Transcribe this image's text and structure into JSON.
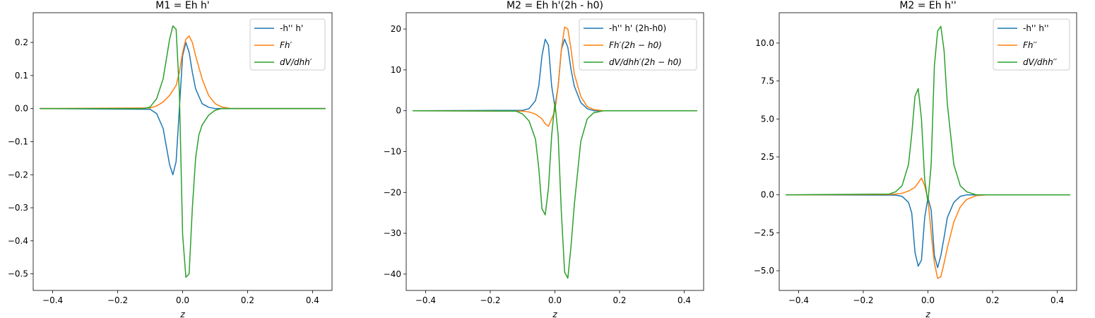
{
  "colors": {
    "blue": "#1f77b4",
    "orange": "#ff7f0e",
    "green": "#2ca02c"
  },
  "chart_data": [
    {
      "type": "line",
      "title": "M1 = Eh h'",
      "xlabel": "z",
      "ylabel": "",
      "xlim": [
        -0.46,
        0.46
      ],
      "ylim": [
        -0.55,
        0.29
      ],
      "xticks": [
        -0.4,
        -0.2,
        0.0,
        0.2,
        0.4
      ],
      "xtick_labels": [
        "−0.4",
        "−0.2",
        "0.0",
        "0.2",
        "0.4"
      ],
      "yticks": [
        0.2,
        0.1,
        0.0,
        -0.1,
        -0.2,
        -0.3,
        -0.4,
        -0.5
      ],
      "ytick_labels": [
        "0.2",
        "0.1",
        "0.0",
        "−0.1",
        "−0.2",
        "−0.3",
        "−0.4",
        "−0.5"
      ],
      "legend_position": "top-right",
      "series": [
        {
          "name": "-h'' h'",
          "color": "#1f77b4",
          "x": [
            -0.44,
            -0.1,
            -0.08,
            -0.06,
            -0.04,
            -0.03,
            -0.02,
            -0.01,
            0.0,
            0.01,
            0.02,
            0.03,
            0.04,
            0.06,
            0.08,
            0.1,
            0.44
          ],
          "y": [
            0.0,
            -0.002,
            -0.015,
            -0.06,
            -0.17,
            -0.2,
            -0.16,
            0.0,
            0.16,
            0.2,
            0.17,
            0.11,
            0.06,
            0.015,
            0.004,
            0.0,
            0.0
          ]
        },
        {
          "name": "Fh′",
          "color": "#ff7f0e",
          "x": [
            -0.44,
            -0.1,
            -0.08,
            -0.06,
            -0.04,
            -0.02,
            -0.01,
            0.0,
            0.01,
            0.02,
            0.03,
            0.04,
            0.06,
            0.08,
            0.1,
            0.12,
            0.15,
            0.44
          ],
          "y": [
            0.0,
            0.002,
            0.008,
            0.02,
            0.04,
            0.07,
            0.11,
            0.17,
            0.21,
            0.22,
            0.2,
            0.16,
            0.09,
            0.04,
            0.015,
            0.005,
            0.0,
            0.0
          ]
        },
        {
          "name": "dV/dhh′",
          "color": "#2ca02c",
          "x": [
            -0.44,
            -0.12,
            -0.1,
            -0.08,
            -0.06,
            -0.05,
            -0.04,
            -0.03,
            -0.02,
            -0.01,
            0.0,
            0.01,
            0.02,
            0.03,
            0.04,
            0.05,
            0.06,
            0.08,
            0.1,
            0.12,
            0.15,
            0.44
          ],
          "y": [
            0.0,
            0.0,
            0.005,
            0.03,
            0.09,
            0.15,
            0.21,
            0.25,
            0.24,
            0.05,
            -0.38,
            -0.51,
            -0.5,
            -0.3,
            -0.15,
            -0.08,
            -0.05,
            -0.02,
            -0.005,
            0.0,
            0.0,
            0.0
          ]
        }
      ]
    },
    {
      "type": "line",
      "title": "M2 = Eh h'(2h - h0)",
      "xlabel": "z",
      "ylabel": "",
      "xlim": [
        -0.46,
        0.46
      ],
      "ylim": [
        -44,
        24
      ],
      "xticks": [
        -0.4,
        -0.2,
        0.0,
        0.2,
        0.4
      ],
      "xtick_labels": [
        "−0.4",
        "−0.2",
        "0.0",
        "0.2",
        "0.4"
      ],
      "yticks": [
        20,
        10,
        0,
        -10,
        -20,
        -30,
        -40
      ],
      "ytick_labels": [
        "20",
        "10",
        "0",
        "−10",
        "−20",
        "−30",
        "−40"
      ],
      "legend_position": "top-right",
      "series": [
        {
          "name": "-h'' h' (2h-h0)",
          "color": "#1f77b4",
          "x": [
            -0.44,
            -0.1,
            -0.08,
            -0.06,
            -0.05,
            -0.04,
            -0.03,
            -0.02,
            -0.01,
            0.0,
            0.01,
            0.02,
            0.03,
            0.04,
            0.05,
            0.06,
            0.08,
            0.1,
            0.12,
            0.44
          ],
          "y": [
            0.0,
            0.1,
            0.5,
            2.5,
            6.0,
            13.5,
            17.5,
            16.0,
            6.0,
            1.0,
            6.0,
            15.0,
            17.5,
            15.5,
            10.0,
            6.0,
            2.0,
            0.5,
            0.0,
            0.0
          ]
        },
        {
          "name": "Fh′(2h − h0)",
          "color": "#ff7f0e",
          "x": [
            -0.44,
            -0.1,
            -0.08,
            -0.06,
            -0.04,
            -0.03,
            -0.02,
            -0.01,
            0.0,
            0.01,
            0.02,
            0.03,
            0.04,
            0.05,
            0.06,
            0.08,
            0.1,
            0.12,
            0.15,
            0.44
          ],
          "y": [
            0.0,
            -0.1,
            -0.3,
            -0.8,
            -2.0,
            -3.2,
            -3.8,
            -2.0,
            0.0,
            6.0,
            15.0,
            20.5,
            20.0,
            15.0,
            9.0,
            3.5,
            1.0,
            0.3,
            0.0,
            0.0
          ]
        },
        {
          "name": "dV/dhh′(2h − h0)",
          "color": "#2ca02c",
          "x": [
            -0.44,
            -0.12,
            -0.1,
            -0.08,
            -0.06,
            -0.05,
            -0.04,
            -0.03,
            -0.02,
            -0.01,
            0.0,
            0.01,
            0.02,
            0.03,
            0.04,
            0.05,
            0.06,
            0.08,
            0.1,
            0.12,
            0.15,
            0.44
          ],
          "y": [
            0.0,
            -0.1,
            -0.8,
            -2.5,
            -7.0,
            -14.0,
            -24.0,
            -25.5,
            -19.0,
            -6.0,
            2.0,
            -6.0,
            -25.0,
            -39.5,
            -41.0,
            -33.0,
            -23.0,
            -7.5,
            -2.0,
            -0.5,
            0.0,
            0.0
          ]
        }
      ]
    },
    {
      "type": "line",
      "title": "M2 = Eh h''",
      "xlabel": "z",
      "ylabel": "",
      "xlim": [
        -0.46,
        0.46
      ],
      "ylim": [
        -6.3,
        12.0
      ],
      "xticks": [
        -0.4,
        -0.2,
        0.0,
        0.2,
        0.4
      ],
      "xtick_labels": [
        "−0.4",
        "−0.2",
        "0.0",
        "0.2",
        "0.4"
      ],
      "yticks": [
        10.0,
        7.5,
        5.0,
        2.5,
        0.0,
        -2.5,
        -5.0
      ],
      "ytick_labels": [
        "10.0",
        "7.5",
        "5.0",
        "2.5",
        "0.0",
        "−2.5",
        "−5.0"
      ],
      "legend_position": "top-right",
      "series": [
        {
          "name": "-h'' h''",
          "color": "#1f77b4",
          "x": [
            -0.44,
            -0.1,
            -0.08,
            -0.06,
            -0.05,
            -0.04,
            -0.03,
            -0.02,
            -0.01,
            0.0,
            0.01,
            0.02,
            0.03,
            0.04,
            0.05,
            0.06,
            0.08,
            0.1,
            0.12,
            0.44
          ],
          "y": [
            0.0,
            -0.02,
            -0.1,
            -0.5,
            -1.2,
            -3.8,
            -4.7,
            -4.3,
            -1.5,
            -0.2,
            -1.0,
            -4.0,
            -4.8,
            -4.0,
            -2.8,
            -1.5,
            -0.5,
            -0.1,
            0.0,
            0.0
          ]
        },
        {
          "name": "Fh′′",
          "color": "#ff7f0e",
          "x": [
            -0.44,
            -0.12,
            -0.1,
            -0.08,
            -0.06,
            -0.04,
            -0.03,
            -0.02,
            -0.01,
            0.0,
            0.01,
            0.02,
            0.03,
            0.04,
            0.05,
            0.06,
            0.08,
            0.1,
            0.12,
            0.15,
            0.18,
            0.44
          ],
          "y": [
            0.0,
            0.02,
            0.05,
            0.1,
            0.25,
            0.5,
            0.8,
            1.1,
            0.6,
            -0.3,
            -2.5,
            -4.5,
            -5.5,
            -5.4,
            -4.5,
            -3.5,
            -1.8,
            -0.8,
            -0.3,
            -0.05,
            0.0,
            0.0
          ]
        },
        {
          "name": "dV/dhh′′",
          "color": "#2ca02c",
          "x": [
            -0.44,
            -0.12,
            -0.1,
            -0.08,
            -0.06,
            -0.05,
            -0.04,
            -0.03,
            -0.02,
            -0.01,
            0.0,
            0.01,
            0.02,
            0.03,
            0.04,
            0.05,
            0.06,
            0.08,
            0.1,
            0.12,
            0.15,
            0.44
          ],
          "y": [
            0.0,
            0.05,
            0.2,
            0.6,
            2.0,
            4.0,
            6.5,
            7.0,
            5.0,
            1.0,
            -0.5,
            2.0,
            8.5,
            10.8,
            11.1,
            9.5,
            6.0,
            2.0,
            0.6,
            0.2,
            0.0,
            0.0
          ]
        }
      ]
    }
  ]
}
